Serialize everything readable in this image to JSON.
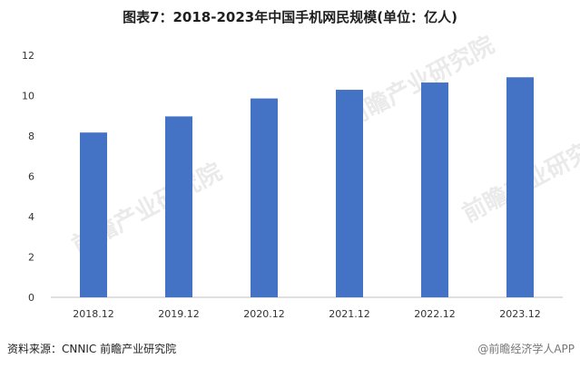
{
  "chart_data": {
    "type": "bar",
    "title": "图表7：2018-2023年中国手机网民规模(单位：亿人)",
    "categories": [
      "2018.12",
      "2019.12",
      "2020.12",
      "2021.12",
      "2022.12",
      "2023.12"
    ],
    "values": [
      8.17,
      8.97,
      9.86,
      10.29,
      10.65,
      10.91
    ],
    "ylim": [
      0,
      12
    ],
    "yticks": [
      "0",
      "2",
      "4",
      "6",
      "8",
      "10",
      "12"
    ],
    "xlabel": "",
    "ylabel": "",
    "grid": false,
    "bar_color": "#4472C4"
  },
  "footer": {
    "source": "资料来源：CNNIC 前瞻产业研究院",
    "brand": "@前瞻经济学人APP"
  },
  "watermark": {
    "text": "前瞻产业研究院"
  }
}
